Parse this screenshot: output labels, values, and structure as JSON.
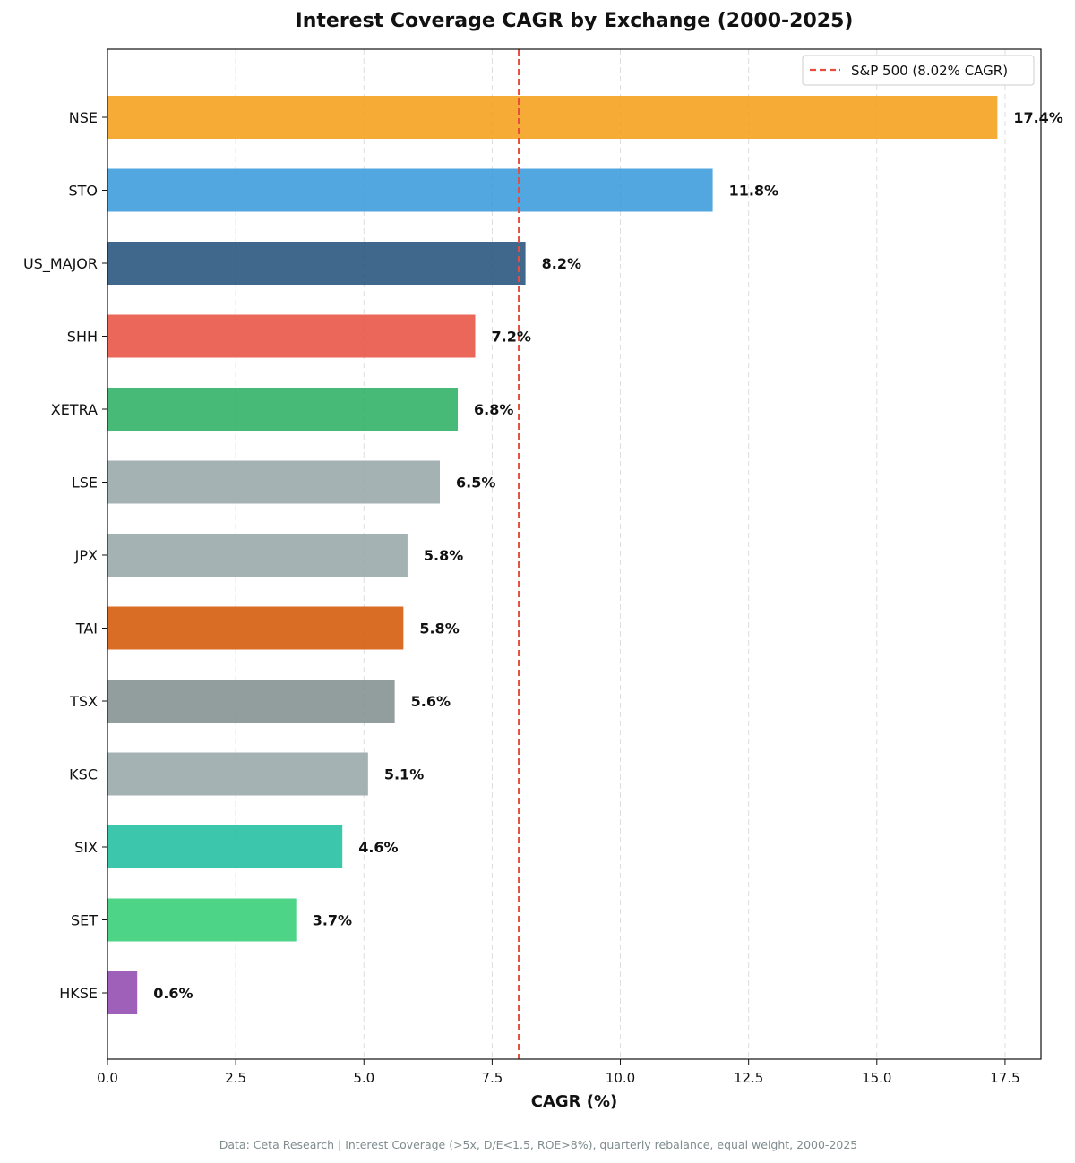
{
  "chart_data": {
    "type": "bar",
    "orientation": "horizontal",
    "title": "Interest Coverage CAGR by Exchange (2000-2025)",
    "xlabel": "CAGR (%)",
    "ylabel": "",
    "xlim": [
      0,
      18.2
    ],
    "xticks": [
      0.0,
      2.5,
      5.0,
      7.5,
      10.0,
      12.5,
      15.0,
      17.5
    ],
    "xtick_labels": [
      "0.0",
      "2.5",
      "5.0",
      "7.5",
      "10.0",
      "12.5",
      "15.0",
      "17.5"
    ],
    "grid": "x-dashed",
    "categories": [
      "NSE",
      "STO",
      "US_MAJOR",
      "SHH",
      "XETRA",
      "LSE",
      "JPX",
      "TAI",
      "TSX",
      "KSC",
      "SIX",
      "SET",
      "HKSE"
    ],
    "values": [
      17.35,
      11.8,
      8.15,
      7.17,
      6.83,
      6.48,
      5.85,
      5.77,
      5.6,
      5.08,
      4.58,
      3.68,
      0.58
    ],
    "value_labels": [
      "17.4%",
      "11.8%",
      "8.2%",
      "7.2%",
      "6.8%",
      "6.5%",
      "5.8%",
      "5.8%",
      "5.6%",
      "5.1%",
      "4.6%",
      "3.7%",
      "0.6%"
    ],
    "colors": [
      "#f39c12",
      "#3498db",
      "#1f4e79",
      "#e74c3c",
      "#27ae60",
      "#95a5a6",
      "#95a5a6",
      "#d35400",
      "#7f8c8d",
      "#95a5a6",
      "#1abc9c",
      "#2ecc71",
      "#8e44ad"
    ],
    "reference_line": {
      "value": 8.02,
      "label": "S&P 500 (8.02% CAGR)",
      "color": "#e74c3c",
      "style": "dashed"
    },
    "legend_position": "top-right",
    "footer": "Data: Ceta Research | Interest Coverage (>5x, D/E<1.5, ROE>8%), quarterly rebalance, equal weight, 2000-2025"
  }
}
